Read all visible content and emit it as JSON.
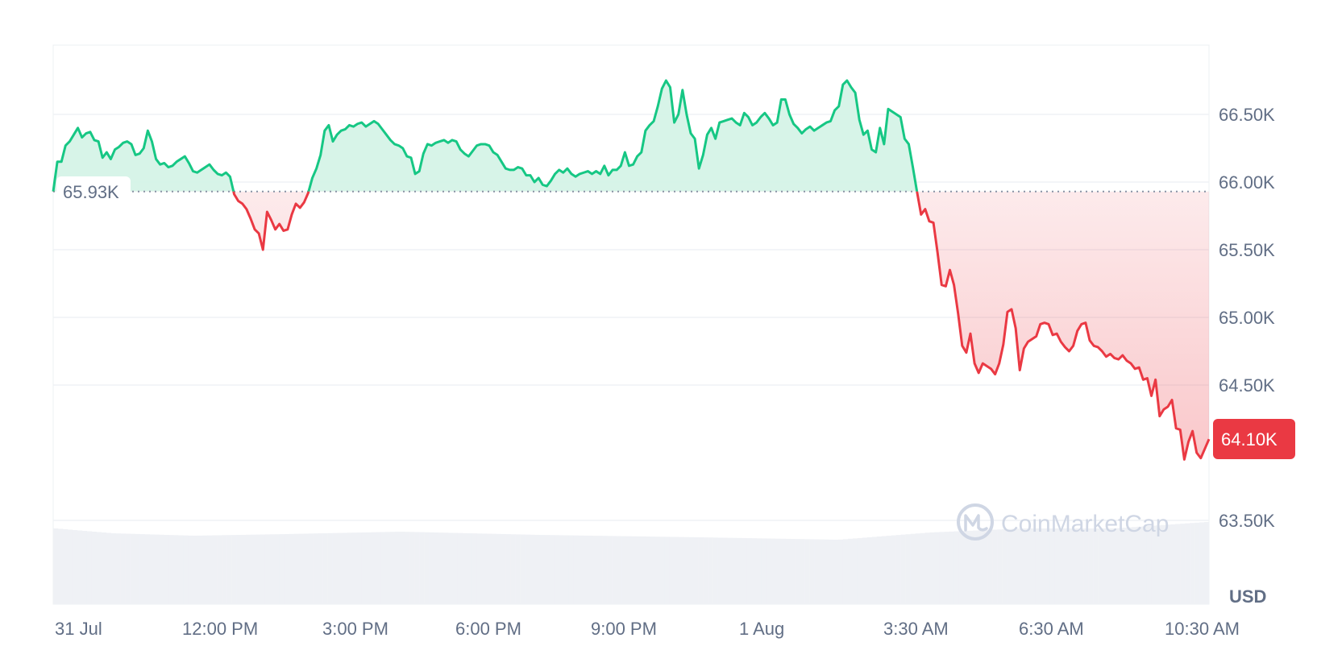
{
  "chart_data": {
    "type": "line",
    "x_ticks": [
      "31 Jul",
      "12:00 PM",
      "3:00 PM",
      "6:00 PM",
      "9:00 PM",
      "1 Aug",
      "3:30 AM",
      "6:30 AM",
      "10:30 AM"
    ],
    "y_ticks": [
      "66.50K",
      "66.00K",
      "65.50K",
      "65.00K",
      "64.50K",
      "63.50K"
    ],
    "y_tick_values": [
      66500,
      66000,
      65500,
      65000,
      64500,
      63500
    ],
    "unit_label": "USD",
    "ylim": [
      63200,
      66900
    ],
    "baseline": {
      "value": 65930,
      "label": "65.93K"
    },
    "current": {
      "value": 64100,
      "label": "64.10K"
    },
    "watermark": "CoinMarketCap",
    "colors": {
      "up": "#16c784",
      "down": "#ea3943",
      "up_fill": "#d3f3e6",
      "down_fill": "#fbdcde",
      "grid": "#eff2f5",
      "axis_text": "#616e85",
      "volume": "#eff1f5"
    },
    "series": [
      {
        "values": [
          65930,
          66150,
          66150,
          66270,
          66300,
          66350,
          66400,
          66330,
          66360,
          66370,
          66310,
          66300,
          66180,
          66220,
          66170,
          66240,
          66260,
          66290,
          66300,
          66280,
          66200,
          66210,
          66250,
          66380,
          66300,
          66170,
          66130,
          66140,
          66110,
          66120,
          66150,
          66170,
          66190,
          66140,
          66080,
          66070,
          66090,
          66110,
          66130,
          66090,
          66060,
          66050,
          66070,
          66040,
          65910,
          65860,
          65840,
          65800,
          65730,
          65650,
          65620,
          65500,
          65780,
          65720,
          65650,
          65690,
          65640,
          65650,
          65760,
          65840,
          65810,
          65850,
          65920,
          66030,
          66100,
          66200,
          66380,
          66420,
          66300,
          66350,
          66380,
          66390,
          66420,
          66410,
          66430,
          66440,
          66410,
          66430,
          66450,
          66430,
          66390,
          66350,
          66310,
          66280,
          66270,
          66250,
          66190,
          66180,
          66060,
          66080,
          66210,
          66280,
          66270,
          66290,
          66300,
          66310,
          66290,
          66310,
          66300,
          66240,
          66210,
          66190,
          66230,
          66270,
          66280,
          66280,
          66270,
          66220,
          66200,
          66150,
          66100,
          66090,
          66090,
          66110,
          66100,
          66050,
          66050,
          66000,
          66030,
          65980,
          65970,
          66010,
          66060,
          66090,
          66070,
          66100,
          66060,
          66040,
          66060,
          66070,
          66080,
          66060,
          66080,
          66060,
          66120,
          66050,
          66090,
          66090,
          66120,
          66220,
          66120,
          66130,
          66190,
          66220,
          66380,
          66420,
          66450,
          66560,
          66690,
          66750,
          66700,
          66440,
          66500,
          66680,
          66500,
          66360,
          66320,
          66100,
          66200,
          66350,
          66400,
          66320,
          66440,
          66450,
          66460,
          66470,
          66440,
          66420,
          66510,
          66480,
          66420,
          66440,
          66480,
          66510,
          66470,
          66420,
          66440,
          66610,
          66610,
          66500,
          66430,
          66400,
          66360,
          66390,
          66410,
          66380,
          66400,
          66420,
          66440,
          66450,
          66530,
          66560,
          66720,
          66750,
          66700,
          66660,
          66460,
          66350,
          66380,
          66240,
          66220,
          66400,
          66280,
          66540,
          66520,
          66500,
          66480,
          66320,
          66280,
          66110,
          65930,
          65760,
          65800,
          65710,
          65700,
          65480,
          65240,
          65230,
          65350,
          65240,
          65030,
          64790,
          64740,
          64880,
          64660,
          64590,
          64660,
          64640,
          64620,
          64580,
          64660,
          64800,
          65040,
          65060,
          64920,
          64610,
          64770,
          64820,
          64840,
          64860,
          64950,
          64960,
          64950,
          64870,
          64880,
          64820,
          64780,
          64750,
          64790,
          64900,
          64950,
          64960,
          64830,
          64790,
          64780,
          64750,
          64710,
          64730,
          64700,
          64690,
          64720,
          64680,
          64660,
          64620,
          64630,
          64540,
          64550,
          64420,
          64540,
          64270,
          64320,
          64340,
          64390,
          64180,
          64170,
          63950,
          64080,
          64160,
          64000,
          63960,
          64030,
          64100
        ]
      }
    ]
  }
}
